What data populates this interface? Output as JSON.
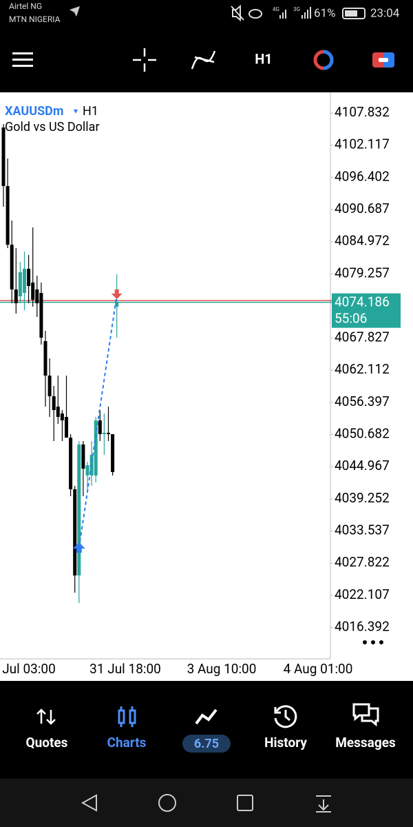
{
  "status_bar": {
    "carrier_1": "Airtel NG",
    "carrier_2": "MTN NIGERIA",
    "network_1": "4G",
    "network_2": "3G",
    "battery": "61%",
    "time": "23:04"
  },
  "toolbar": {
    "timeframe": "H1"
  },
  "chart_data": {
    "type": "candlestick",
    "symbol": "XAUUSDm",
    "symbol_menu": "▾",
    "timeframe": "H1",
    "description": "Gold vs US Dollar",
    "bull_color": "#26a69a",
    "bear_color": "#000000",
    "candles": [
      {
        "open": 4105.26,
        "high": 4105.87,
        "low": 4091.17,
        "close": 4094.85
      },
      {
        "open": 4094.85,
        "high": 4099.75,
        "low": 4083.82,
        "close": 4084.43
      },
      {
        "open": 4084.43,
        "high": 4088.72,
        "low": 4074.02,
        "close": 4076.47
      },
      {
        "open": 4076.47,
        "high": 4083.82,
        "low": 4072.19,
        "close": 4074.02
      },
      {
        "open": 4075.25,
        "high": 4081.37,
        "low": 4074.02,
        "close": 4079.54
      },
      {
        "open": 4075.86,
        "high": 4083.21,
        "low": 4072.8,
        "close": 4080.15
      },
      {
        "open": 4080.15,
        "high": 4082.6,
        "low": 4074.02,
        "close": 4077.08
      },
      {
        "open": 4077.7,
        "high": 4087.5,
        "low": 4073.41,
        "close": 4074.64
      },
      {
        "open": 4076.47,
        "high": 4078.92,
        "low": 4071.57,
        "close": 4074.02
      },
      {
        "open": 4075.86,
        "high": 4077.7,
        "low": 4066.67,
        "close": 4067.9
      },
      {
        "open": 4067.28,
        "high": 4069.12,
        "low": 4055.65,
        "close": 4061.16
      },
      {
        "open": 4061.16,
        "high": 4064.22,
        "low": 4053.81,
        "close": 4057.49
      },
      {
        "open": 4057.49,
        "high": 4059.32,
        "low": 4049.52,
        "close": 4055.03
      },
      {
        "open": 4055.65,
        "high": 4061.16,
        "low": 4052.59,
        "close": 4053.81
      },
      {
        "open": 4054.42,
        "high": 4055.03,
        "low": 4049.52,
        "close": 4053.2
      },
      {
        "open": 4053.81,
        "high": 4061.16,
        "low": 4050.13,
        "close": 4050.13
      },
      {
        "open": 4050.13,
        "high": 4050.75,
        "low": 4039.72,
        "close": 4040.95
      },
      {
        "open": 4040.95,
        "high": 4041.56,
        "low": 4022.57,
        "close": 4025.63
      },
      {
        "open": 4025.63,
        "high": 4049.52,
        "low": 4020.73,
        "close": 4048.91
      },
      {
        "open": 4048.91,
        "high": 4049.52,
        "low": 4039.72,
        "close": 4044.62
      },
      {
        "open": 4043.4,
        "high": 4045.85,
        "low": 4040.95,
        "close": 4045.23
      },
      {
        "open": 4043.4,
        "high": 4049.52,
        "low": 4041.56,
        "close": 4047.07
      },
      {
        "open": 4043.4,
        "high": 4053.81,
        "low": 4042.17,
        "close": 4053.2
      },
      {
        "open": 4053.2,
        "high": 4055.03,
        "low": 4049.52,
        "close": 4050.75
      },
      {
        "open": 4050.75,
        "high": 4054.42,
        "low": 4047.07,
        "close": 4050.99
      },
      {
        "open": 4050.99,
        "high": 4055.65,
        "low": 4049.52,
        "close": 4050.75
      },
      {
        "open": 4050.75,
        "high": 4050.75,
        "low": 4043.4,
        "close": 4044.01
      },
      {
        "open": 4073.41,
        "high": 4079.17,
        "low": 4067.9,
        "close": 4074.27
      }
    ],
    "ylim": [
      4010.93,
      4111.51
    ],
    "yticks": [
      4107.832,
      4102.117,
      4096.402,
      4090.687,
      4084.972,
      4079.257,
      4067.827,
      4062.112,
      4056.397,
      4050.682,
      4044.967,
      4039.252,
      4033.537,
      4027.822,
      4022.107,
      4016.392
    ],
    "x_labels": [
      "Jul 03:00",
      "31 Jul 18:00",
      "3 Aug 10:00",
      "4 Aug 01:00"
    ],
    "bid": 4074.186,
    "ask": 4074.5,
    "bar_timer": "55:06",
    "buy": {
      "price": 4030.53
    },
    "sell": {
      "price": 4075.49
    }
  },
  "bottom_nav": {
    "quotes": "Quotes",
    "charts": "Charts",
    "balance": "6.75",
    "history": "History",
    "messages": "Messages"
  }
}
